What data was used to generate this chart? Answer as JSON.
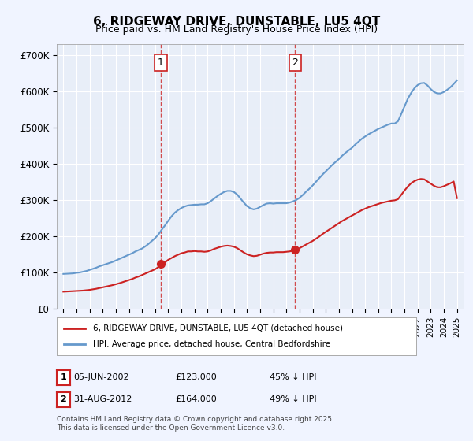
{
  "title": "6, RIDGEWAY DRIVE, DUNSTABLE, LU5 4QT",
  "subtitle": "Price paid vs. HM Land Registry's House Price Index (HPI)",
  "background_color": "#f0f4ff",
  "plot_bg_color": "#e8eef8",
  "ylabel": "",
  "ylim": [
    0,
    730000
  ],
  "yticks": [
    0,
    100000,
    200000,
    300000,
    400000,
    500000,
    600000,
    700000
  ],
  "ytick_labels": [
    "£0",
    "£100K",
    "£200K",
    "£300K",
    "£400K",
    "£500K",
    "£600K",
    "£700K"
  ],
  "xlim_start": 1994.5,
  "xlim_end": 2025.5,
  "xticks": [
    1995,
    1996,
    1997,
    1998,
    1999,
    2000,
    2001,
    2002,
    2003,
    2004,
    2005,
    2006,
    2007,
    2008,
    2009,
    2010,
    2011,
    2012,
    2013,
    2014,
    2015,
    2016,
    2017,
    2018,
    2019,
    2020,
    2021,
    2022,
    2023,
    2024,
    2025
  ],
  "sale1_x": 2002.43,
  "sale1_y": 123000,
  "sale1_label": "1",
  "sale2_x": 2012.66,
  "sale2_y": 164000,
  "sale2_label": "2",
  "vline1_x": 2002.43,
  "vline2_x": 2012.66,
  "legend_line1": "6, RIDGEWAY DRIVE, DUNSTABLE, LU5 4QT (detached house)",
  "legend_line2": "HPI: Average price, detached house, Central Bedfordshire",
  "annotation1": "1     05-JUN-2002          £123,000          45% ↓ HPI",
  "annotation2": "2     31-AUG-2012          £164,000          49% ↓ HPI",
  "footer": "Contains HM Land Registry data © Crown copyright and database right 2025.\nThis data is licensed under the Open Government Licence v3.0.",
  "hpi_color": "#6699cc",
  "price_color": "#cc2222",
  "grid_color": "#ffffff",
  "hpi_data_x": [
    1995.0,
    1995.25,
    1995.5,
    1995.75,
    1996.0,
    1996.25,
    1996.5,
    1996.75,
    1997.0,
    1997.25,
    1997.5,
    1997.75,
    1998.0,
    1998.25,
    1998.5,
    1998.75,
    1999.0,
    1999.25,
    1999.5,
    1999.75,
    2000.0,
    2000.25,
    2000.5,
    2000.75,
    2001.0,
    2001.25,
    2001.5,
    2001.75,
    2002.0,
    2002.25,
    2002.5,
    2002.75,
    2003.0,
    2003.25,
    2003.5,
    2003.75,
    2004.0,
    2004.25,
    2004.5,
    2004.75,
    2005.0,
    2005.25,
    2005.5,
    2005.75,
    2006.0,
    2006.25,
    2006.5,
    2006.75,
    2007.0,
    2007.25,
    2007.5,
    2007.75,
    2008.0,
    2008.25,
    2008.5,
    2008.75,
    2009.0,
    2009.25,
    2009.5,
    2009.75,
    2010.0,
    2010.25,
    2010.5,
    2010.75,
    2011.0,
    2011.25,
    2011.5,
    2011.75,
    2012.0,
    2012.25,
    2012.5,
    2012.75,
    2013.0,
    2013.25,
    2013.5,
    2013.75,
    2014.0,
    2014.25,
    2014.5,
    2014.75,
    2015.0,
    2015.25,
    2015.5,
    2015.75,
    2016.0,
    2016.25,
    2016.5,
    2016.75,
    2017.0,
    2017.25,
    2017.5,
    2017.75,
    2018.0,
    2018.25,
    2018.5,
    2018.75,
    2019.0,
    2019.25,
    2019.5,
    2019.75,
    2020.0,
    2020.25,
    2020.5,
    2020.75,
    2021.0,
    2021.25,
    2021.5,
    2021.75,
    2022.0,
    2022.25,
    2022.5,
    2022.75,
    2023.0,
    2023.25,
    2023.5,
    2023.75,
    2024.0,
    2024.25,
    2024.5,
    2024.75,
    2025.0
  ],
  "hpi_data_y": [
    96000,
    96500,
    97000,
    97500,
    99000,
    100000,
    102000,
    104000,
    107000,
    110000,
    113000,
    117000,
    120000,
    123000,
    126000,
    129000,
    133000,
    137000,
    141000,
    145000,
    149000,
    153000,
    158000,
    162000,
    166000,
    172000,
    179000,
    187000,
    195000,
    205000,
    218000,
    230000,
    243000,
    255000,
    265000,
    272000,
    278000,
    282000,
    285000,
    286000,
    287000,
    287000,
    288000,
    288000,
    291000,
    297000,
    304000,
    311000,
    317000,
    322000,
    325000,
    325000,
    322000,
    315000,
    304000,
    293000,
    283000,
    277000,
    274000,
    276000,
    281000,
    286000,
    290000,
    291000,
    290000,
    291000,
    291000,
    291000,
    291000,
    293000,
    296000,
    300000,
    306000,
    314000,
    323000,
    331000,
    340000,
    350000,
    360000,
    370000,
    379000,
    388000,
    397000,
    405000,
    413000,
    422000,
    430000,
    437000,
    444000,
    453000,
    461000,
    469000,
    475000,
    481000,
    486000,
    491000,
    496000,
    500000,
    504000,
    508000,
    511000,
    511000,
    517000,
    537000,
    558000,
    579000,
    595000,
    608000,
    617000,
    622000,
    623000,
    616000,
    606000,
    598000,
    594000,
    594000,
    598000,
    604000,
    611000,
    620000,
    630000
  ],
  "price_data_x": [
    1995.0,
    1995.25,
    1995.5,
    1995.75,
    1996.0,
    1996.25,
    1996.5,
    1996.75,
    1997.0,
    1997.25,
    1997.5,
    1997.75,
    1998.0,
    1998.25,
    1998.5,
    1998.75,
    1999.0,
    1999.25,
    1999.5,
    1999.75,
    2000.0,
    2000.25,
    2000.5,
    2000.75,
    2001.0,
    2001.25,
    2001.5,
    2001.75,
    2002.0,
    2002.25,
    2002.5,
    2002.75,
    2003.0,
    2003.25,
    2003.5,
    2003.75,
    2004.0,
    2004.25,
    2004.5,
    2004.75,
    2005.0,
    2005.25,
    2005.5,
    2005.75,
    2006.0,
    2006.25,
    2006.5,
    2006.75,
    2007.0,
    2007.25,
    2007.5,
    2007.75,
    2008.0,
    2008.25,
    2008.5,
    2008.75,
    2009.0,
    2009.25,
    2009.5,
    2009.75,
    2010.0,
    2010.25,
    2010.5,
    2010.75,
    2011.0,
    2011.25,
    2011.5,
    2011.75,
    2012.0,
    2012.25,
    2012.5,
    2012.75,
    2013.0,
    2013.25,
    2013.5,
    2013.75,
    2014.0,
    2014.25,
    2014.5,
    2014.75,
    2015.0,
    2015.25,
    2015.5,
    2015.75,
    2016.0,
    2016.25,
    2016.5,
    2016.75,
    2017.0,
    2017.25,
    2017.5,
    2017.75,
    2018.0,
    2018.25,
    2018.5,
    2018.75,
    2019.0,
    2019.25,
    2019.5,
    2019.75,
    2020.0,
    2020.25,
    2020.5,
    2020.75,
    2021.0,
    2021.25,
    2021.5,
    2021.75,
    2022.0,
    2022.25,
    2022.5,
    2022.75,
    2023.0,
    2023.25,
    2023.5,
    2023.75,
    2024.0,
    2024.25,
    2024.5,
    2024.75,
    2025.0
  ],
  "price_data_y": [
    47000,
    47500,
    48000,
    48500,
    49000,
    49500,
    50000,
    51000,
    52000,
    53500,
    55000,
    57000,
    59000,
    61000,
    63000,
    65000,
    67500,
    70000,
    73000,
    76000,
    79000,
    82000,
    86000,
    89000,
    93000,
    97000,
    101000,
    105000,
    109000,
    115000,
    122000,
    128000,
    135000,
    140000,
    145000,
    149000,
    153000,
    155000,
    158000,
    158000,
    159000,
    158000,
    158000,
    157000,
    158000,
    161000,
    165000,
    168000,
    171000,
    173000,
    174000,
    173000,
    171000,
    167000,
    161000,
    155000,
    150000,
    147000,
    145000,
    146000,
    149000,
    152000,
    154000,
    155000,
    155000,
    156000,
    156000,
    156000,
    157000,
    158000,
    160000,
    163000,
    167000,
    172000,
    177000,
    182000,
    187000,
    193000,
    199000,
    206000,
    212000,
    218000,
    224000,
    230000,
    236000,
    242000,
    247000,
    252000,
    257000,
    262000,
    267000,
    272000,
    276000,
    280000,
    283000,
    286000,
    289000,
    292000,
    294000,
    296000,
    298000,
    299000,
    302000,
    314000,
    326000,
    337000,
    346000,
    352000,
    356000,
    358000,
    357000,
    351000,
    345000,
    339000,
    335000,
    335000,
    338000,
    342000,
    346000,
    351000,
    305000
  ]
}
